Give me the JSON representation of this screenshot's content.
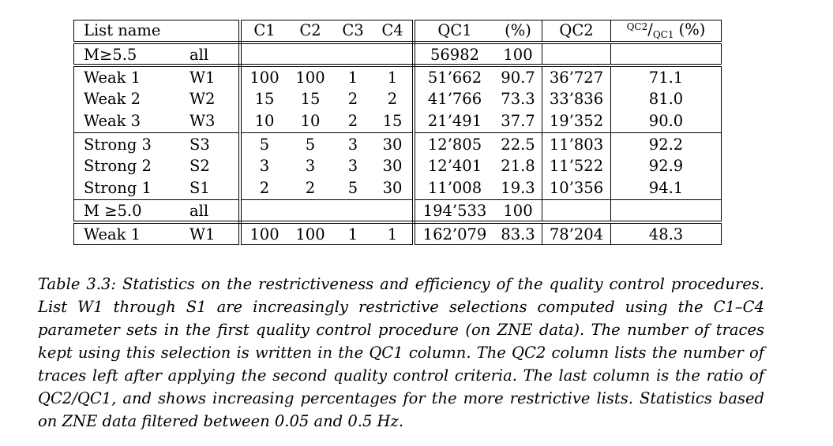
{
  "table": {
    "header": {
      "list_name": "List name",
      "c1": "C1",
      "c2": "C2",
      "c3": "C3",
      "c4": "C4",
      "qc1": "QC1",
      "pct": "(%)",
      "qc2": "QC2",
      "ratio_num": "QC2",
      "ratio_den": "QC1",
      "ratio_pct": "(%)"
    },
    "groups": [
      {
        "rows": [
          {
            "name": "M≥5.5",
            "short": "all",
            "c1": "",
            "c2": "",
            "c3": "",
            "c4": "",
            "qc1": "56982",
            "pct": "100",
            "qc2": "",
            "ratio": ""
          }
        ]
      },
      {
        "rows": [
          {
            "name": "Weak 1",
            "short": "W1",
            "c1": "100",
            "c2": "100",
            "c3": "1",
            "c4": "1",
            "qc1": "51’662",
            "pct": "90.7",
            "qc2": "36’727",
            "ratio": "71.1"
          },
          {
            "name": "Weak 2",
            "short": "W2",
            "c1": "15",
            "c2": "15",
            "c3": "2",
            "c4": "2",
            "qc1": "41’766",
            "pct": "73.3",
            "qc2": "33’836",
            "ratio": "81.0"
          },
          {
            "name": "Weak 3",
            "short": "W3",
            "c1": "10",
            "c2": "10",
            "c3": "2",
            "c4": "15",
            "qc1": "21’491",
            "pct": "37.7",
            "qc2": "19’352",
            "ratio": "90.0"
          }
        ]
      },
      {
        "rows": [
          {
            "name": "Strong 3",
            "short": "S3",
            "c1": "5",
            "c2": "5",
            "c3": "3",
            "c4": "30",
            "qc1": "12’805",
            "pct": "22.5",
            "qc2": "11’803",
            "ratio": "92.2"
          },
          {
            "name": "Strong 2",
            "short": "S2",
            "c1": "3",
            "c2": "3",
            "c3": "3",
            "c4": "30",
            "qc1": "12’401",
            "pct": "21.8",
            "qc2": "11’522",
            "ratio": "92.9"
          },
          {
            "name": "Strong 1",
            "short": "S1",
            "c1": "2",
            "c2": "2",
            "c3": "5",
            "c4": "30",
            "qc1": "11’008",
            "pct": "19.3",
            "qc2": "10’356",
            "ratio": "94.1"
          }
        ]
      },
      {
        "rows": [
          {
            "name": "M ≥5.0",
            "short": "all",
            "c1": "",
            "c2": "",
            "c3": "",
            "c4": "",
            "qc1": "194’533",
            "pct": "100",
            "qc2": "",
            "ratio": ""
          }
        ]
      },
      {
        "rows": [
          {
            "name": "Weak 1",
            "short": "W1",
            "c1": "100",
            "c2": "100",
            "c3": "1",
            "c4": "1",
            "qc1": "162’079",
            "pct": "83.3",
            "qc2": "78’204",
            "ratio": "48.3"
          }
        ]
      }
    ]
  },
  "caption": "Table 3.3: Statistics on the restrictiveness and efficiency of the quality control procedures. List W1 through S1 are increasingly restrictive selections computed using the C1–C4 parameter sets in the first quality control procedure (on ZNE data). The number of traces kept using this selection is written in the QC1 column. The QC2 column lists the number of traces left after applying the second quality control criteria. The last column is the ratio of QC2/QC1, and shows increasing percentages for the more restrictive lists. Statistics based on ZNE data filtered between 0.05 and 0.5 Hz."
}
